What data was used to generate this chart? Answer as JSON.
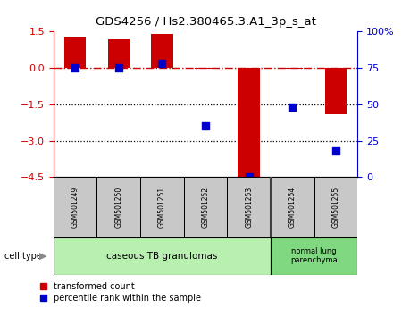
{
  "title": "GDS4256 / Hs2.380465.3.A1_3p_s_at",
  "samples": [
    "GSM501249",
    "GSM501250",
    "GSM501251",
    "GSM501252",
    "GSM501253",
    "GSM501254",
    "GSM501255"
  ],
  "red_values": [
    1.3,
    1.2,
    1.4,
    -0.05,
    -4.5,
    -0.05,
    -1.9
  ],
  "blue_values_pct": [
    75,
    75,
    78,
    35,
    0,
    48,
    18
  ],
  "left_ylim": [
    -4.5,
    1.5
  ],
  "right_ylim": [
    0,
    100
  ],
  "left_yticks": [
    1.5,
    0,
    -1.5,
    -3,
    -4.5
  ],
  "right_yticks": [
    100,
    75,
    50,
    25,
    0
  ],
  "right_yticklabels": [
    "100%",
    "75",
    "50",
    "25",
    "0"
  ],
  "dotted_lines": [
    -1.5,
    -3
  ],
  "dashdot_line": 0,
  "cell_groups": [
    {
      "label": "caseous TB granulomas",
      "indices": [
        0,
        1,
        2,
        3,
        4
      ],
      "color": "#b8f0b0"
    },
    {
      "label": "normal lung\nparenchyma",
      "indices": [
        5,
        6
      ],
      "color": "#80d880"
    }
  ],
  "bar_color": "#cc0000",
  "dot_color": "#0000cc",
  "bar_width": 0.5,
  "dot_size": 30,
  "axis_color_left": "#cc0000",
  "axis_color_right": "#0000cc",
  "legend_red_label": "transformed count",
  "legend_blue_label": "percentile rank within the sample",
  "cell_type_label": "cell type",
  "sample_box_color": "#c8c8c8",
  "group_border_color": "#404040"
}
